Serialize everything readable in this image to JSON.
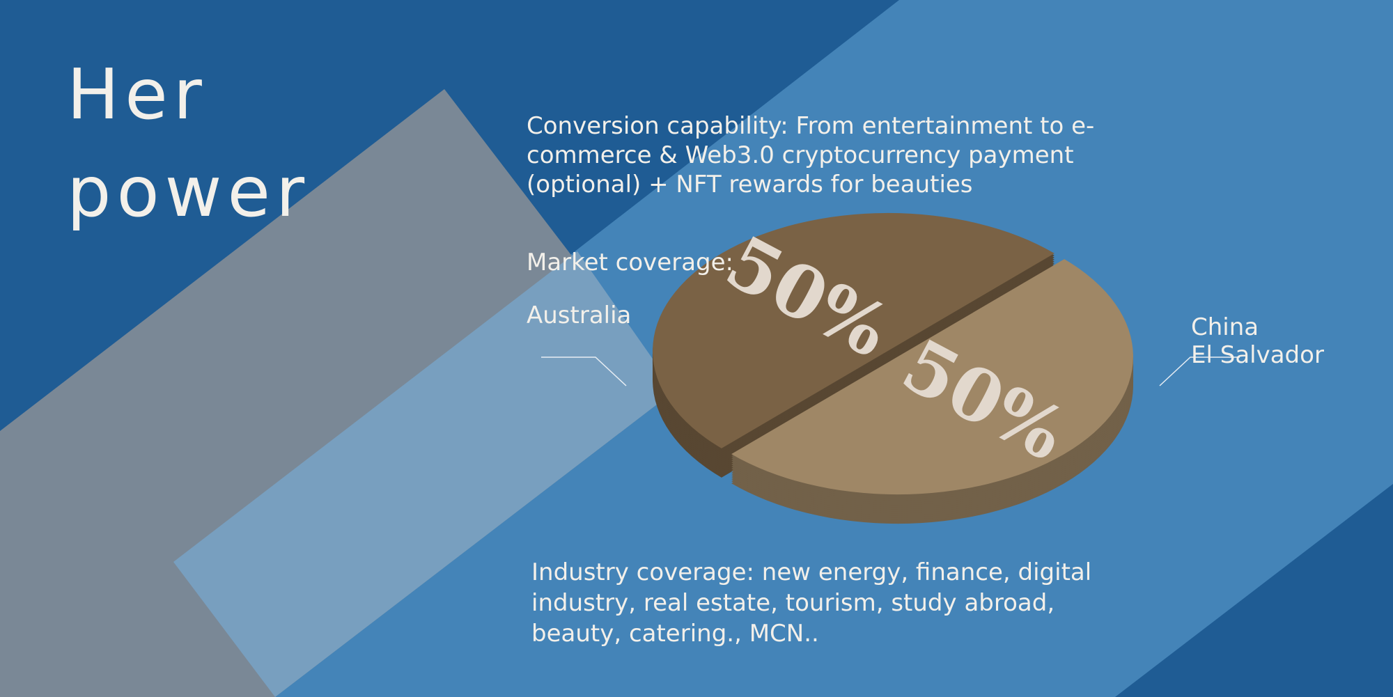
{
  "title": "Her power",
  "conversion": "Conversion capability: From entertainment to e-commerce & Web3.0 cryptocurrency payment (optional) + NFT rewards for beauties",
  "market_label": "Market coverage:",
  "industry": "Industry coverage: new energy, finance, digital industry, real estate, tourism, study abroad, beauty, catering., MCN..",
  "chart_data": {
    "type": "pie",
    "categories": [
      [
        "Australia"
      ],
      [
        "China",
        "El Salvador"
      ]
    ],
    "values": [
      50,
      50
    ],
    "value_labels": [
      "50%",
      "50%"
    ],
    "colors": [
      "#7a6245",
      "#9f8766"
    ]
  }
}
